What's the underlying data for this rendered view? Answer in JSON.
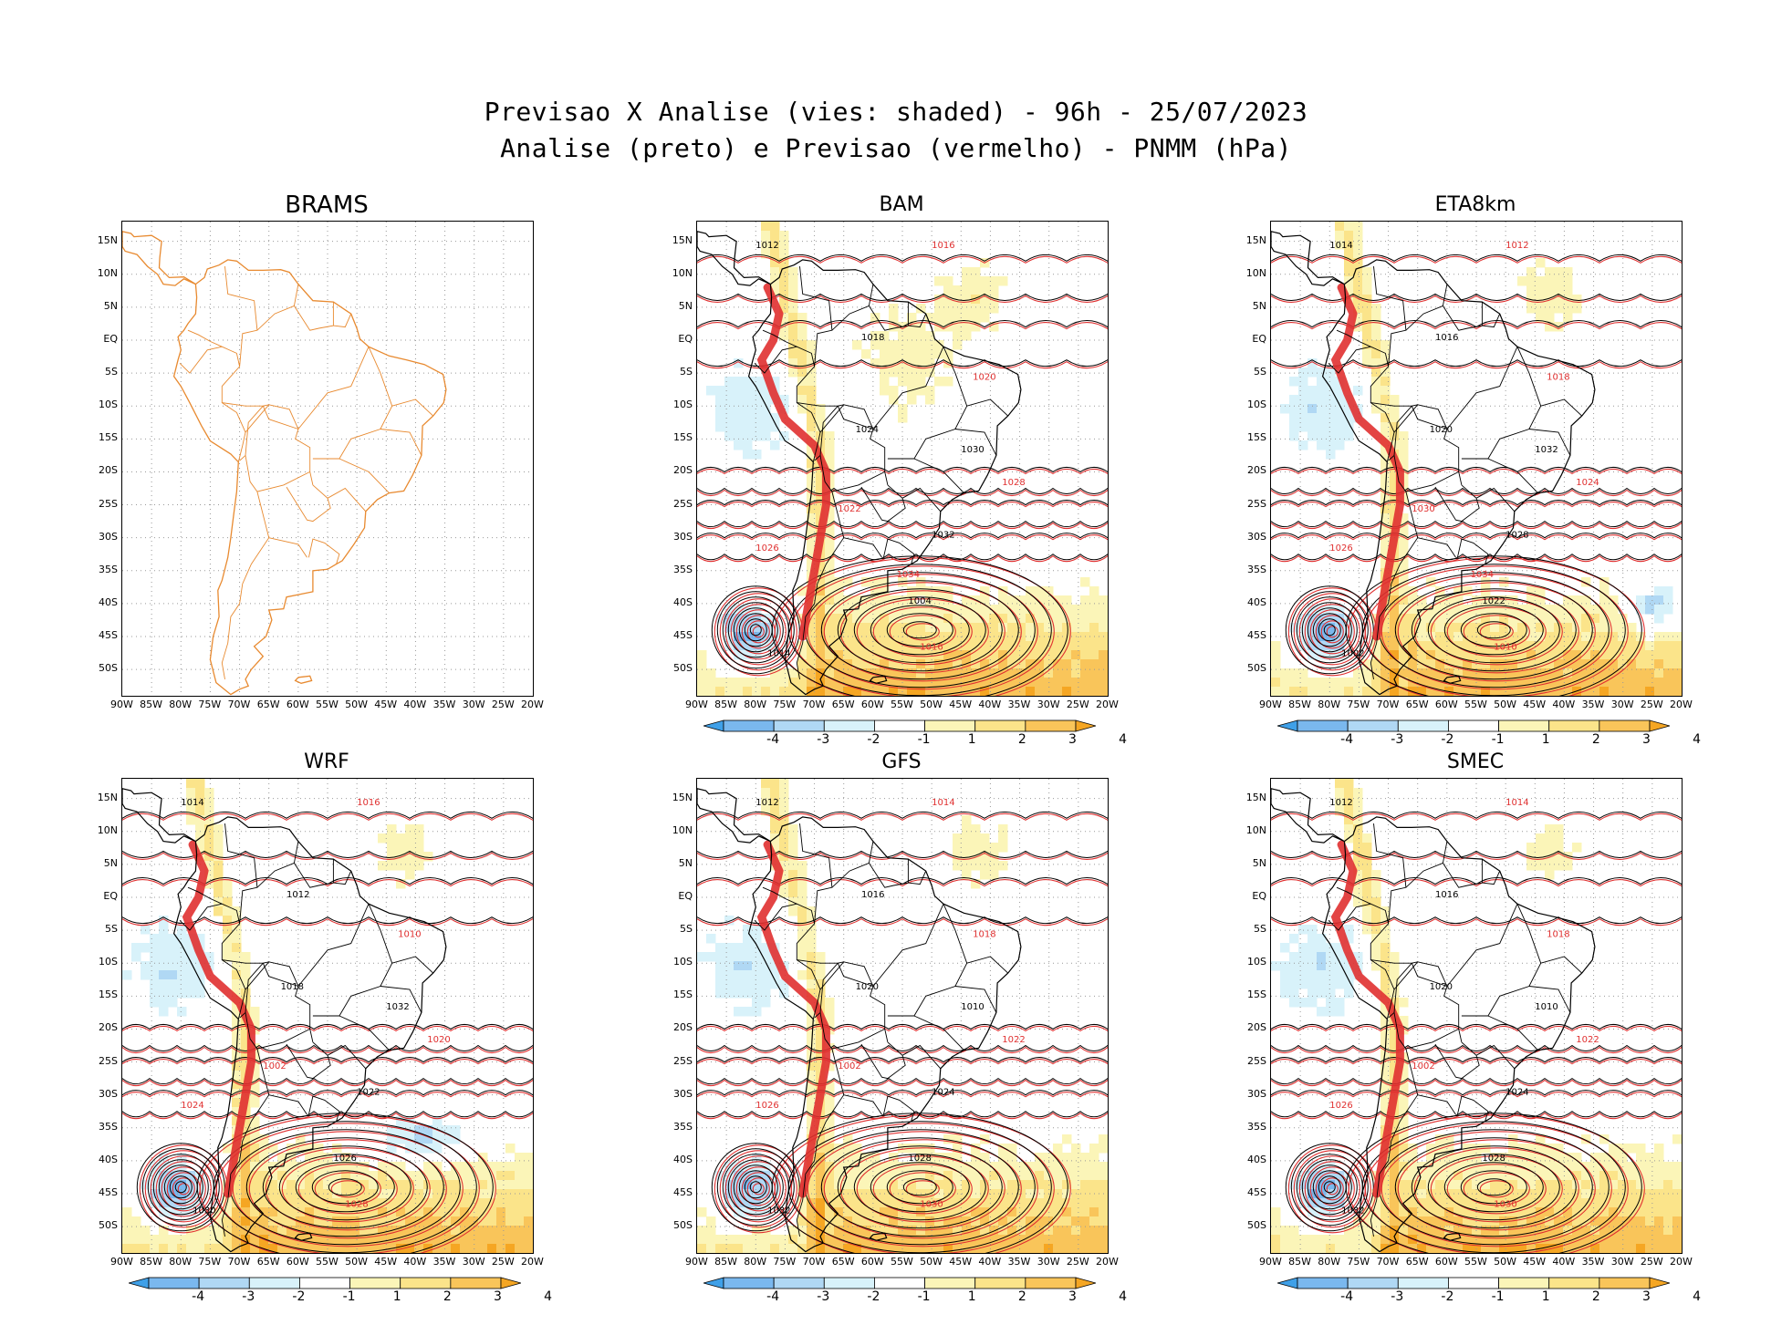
{
  "header": {
    "title_line1": "Previsao X Analise (vies: shaded) - 96h - 25/07/2023",
    "title_line2": "Analise (preto) e Previsao (vermelho) - PNMM (hPa)"
  },
  "panels": [
    {
      "id": "brams",
      "name": "BRAMS",
      "empty": true
    },
    {
      "id": "bam",
      "name": "BAM",
      "empty": false
    },
    {
      "id": "eta8km",
      "name": "ETA8km",
      "empty": false
    },
    {
      "id": "wrf",
      "name": "WRF",
      "empty": false
    },
    {
      "id": "gfs",
      "name": "GFS",
      "empty": false
    },
    {
      "id": "smec",
      "name": "SMEC",
      "empty": false
    }
  ],
  "axes": {
    "lat_labels": [
      "15N",
      "10N",
      "5N",
      "EQ",
      "5S",
      "10S",
      "15S",
      "20S",
      "25S",
      "30S",
      "35S",
      "40S",
      "45S",
      "50S"
    ],
    "lon_labels": [
      "90W",
      "85W",
      "80W",
      "75W",
      "70W",
      "65W",
      "60W",
      "55W",
      "50W",
      "45W",
      "40W",
      "35W",
      "30W",
      "25W",
      "20W"
    ]
  },
  "legend": {
    "labels": [
      "-4",
      "-3",
      "-2",
      "-1",
      "1",
      "2",
      "3",
      "4"
    ],
    "colors": [
      "#3fa0e8",
      "#7ab8ee",
      "#b0d8f4",
      "#d8f2fa",
      "#ffffff",
      "#fbf5b8",
      "#fbe48a",
      "#f9c55a",
      "#f5a623"
    ]
  },
  "colors": {
    "analysis": "#000000",
    "forecast": "#e03030",
    "coast": "#e88a30"
  },
  "isobar_labels": {
    "bam": [
      "1012",
      "1016",
      "1018",
      "1020",
      "1024",
      "1028",
      "1032",
      "1026",
      "1004",
      "1016",
      "1014",
      "1022",
      "1030",
      "1034"
    ],
    "eta8km": [
      "1014",
      "1012",
      "1016",
      "1018",
      "1020",
      "1024",
      "1028",
      "1026",
      "1022",
      "1010",
      "1002",
      "1030",
      "1032",
      "1034"
    ],
    "wrf": [
      "1014",
      "1016",
      "1012",
      "1010",
      "1018",
      "1020",
      "1022",
      "1024",
      "1026",
      "1028",
      "1030",
      "1002",
      "1032"
    ],
    "gfs": [
      "1012",
      "1014",
      "1016",
      "1018",
      "1020",
      "1022",
      "1024",
      "1026",
      "1028",
      "1030",
      "1032",
      "1002",
      "1010"
    ],
    "smec": [
      "1012",
      "1014",
      "1016",
      "1018",
      "1020",
      "1022",
      "1024",
      "1026",
      "1028",
      "1030",
      "1032",
      "1002",
      "1010"
    ]
  }
}
